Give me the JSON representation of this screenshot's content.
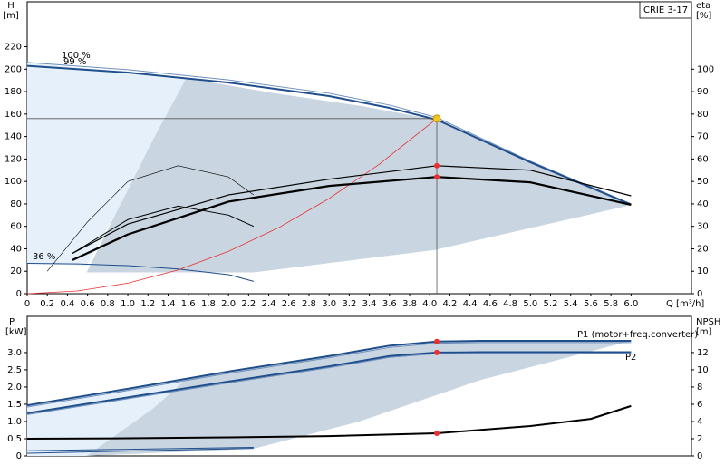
{
  "chart_data": [
    {
      "type": "line",
      "title": "CRIE 3-17",
      "xlabel": "Q [m³/h]",
      "ylabel": "H",
      "yunit": "[m]",
      "y2label": "eta",
      "y2unit": "[%]",
      "xlim": [
        0,
        6.6
      ],
      "ylim": [
        0,
        260
      ],
      "y2lim": [
        0,
        130
      ],
      "xticks": [
        0,
        0.2,
        0.4,
        0.6,
        0.8,
        {
          "value": 1,
          "label": "1.0"
        },
        1.2,
        1.4,
        1.6,
        1.8,
        {
          "value": 2,
          "label": "2.0"
        },
        2.2,
        2.4,
        2.6,
        2.8,
        {
          "value": 3,
          "label": "3.0"
        },
        3.2,
        3.4,
        3.6,
        3.8,
        {
          "value": 4,
          "label": "4.0"
        },
        4.2,
        4.4,
        4.6,
        4.8,
        {
          "value": 5,
          "label": "5.0"
        },
        5.2,
        5.4,
        5.6,
        5.8,
        {
          "value": 6,
          "label": "6.0"
        }
      ],
      "yticks": [
        0,
        20,
        40,
        60,
        80,
        100,
        120,
        140,
        160,
        180,
        200,
        220
      ],
      "y2ticks": [
        0,
        10,
        20,
        30,
        40,
        50,
        60,
        70,
        80,
        90,
        100
      ],
      "crosshair": true,
      "series": [
        {
          "x": [
            0.59,
            0.9,
            1.26,
            1.58,
            2.43,
            3.33,
            4.05,
            6.0,
            4.05,
            2.25
          ],
          "values": [
            19,
            75,
            139,
            192,
            179,
            167,
            155,
            79,
            39,
            19
          ],
          "fill": "#c9d5e1"
        },
        {
          "x": [
            0,
            1.58,
            1.26,
            0.9,
            0.59,
            0
          ],
          "values": [
            206,
            192,
            139,
            75,
            25,
            27
          ],
          "fill": "#e6f0fa"
        },
        {
          "name": "100 %",
          "x": [
            0,
            1,
            2,
            3,
            3.6,
            4.07,
            5,
            6
          ],
          "values": [
            206,
            199.5,
            190.5,
            178.5,
            168,
            157,
            118,
            80
          ],
          "color": "#6f8fba",
          "line_width": 1
        },
        {
          "name": "99 %",
          "x": [
            0,
            1,
            2,
            3,
            3.6,
            4.07,
            5,
            6
          ],
          "values": [
            203,
            197,
            188,
            176,
            165.5,
            155,
            117,
            79.5
          ],
          "color": "#1f4e8c",
          "line_width": 2
        },
        {
          "name": "36 %",
          "x": [
            0,
            0.5,
            1,
            1.5,
            2,
            2.25
          ],
          "values": [
            27,
            26.5,
            25,
            22,
            17,
            11
          ],
          "color": "#1f4e8c",
          "line_width": 1
        },
        {
          "x": [
            0,
            0.5,
            1,
            1.5,
            2,
            2.5,
            3,
            3.5,
            4.07
          ],
          "values": [
            0,
            2.4,
            9.4,
            21.2,
            37.7,
            58.9,
            84.8,
            115.4,
            156
          ],
          "color": "#e83030",
          "line_width": 0.8
        },
        {
          "axis": "y2",
          "x": [
            0.45,
            1,
            2,
            3,
            4.07,
            5,
            6
          ],
          "values": [
            18,
            31,
            44,
            51,
            57,
            55,
            43.6
          ],
          "color": "#000000",
          "line_width": 1.2
        },
        {
          "axis": "y2",
          "x": [
            0.45,
            1,
            2,
            3,
            4.07,
            5,
            6
          ],
          "values": [
            15,
            26.4,
            41,
            48,
            52,
            49.6,
            39.6
          ],
          "color": "#000000",
          "line_width": 2.2
        },
        {
          "axis": "y2",
          "x": [
            0.2,
            0.6,
            1,
            1.5,
            2,
            2.25
          ],
          "values": [
            10,
            32,
            50,
            57,
            52,
            44
          ],
          "color": "#000000",
          "line_width": 0.6
        },
        {
          "axis": "y2",
          "x": [
            0.45,
            1,
            1.5,
            2,
            2.25
          ],
          "values": [
            18,
            33,
            39,
            35,
            30
          ],
          "color": "#000000",
          "line_width": 1
        }
      ],
      "points": [
        {
          "x": 4.07,
          "y": 156,
          "color": "#f5c518"
        },
        {
          "x": 4.07,
          "y": 57,
          "axis": "y2",
          "color": "#e83030"
        },
        {
          "x": 4.07,
          "y": 52,
          "axis": "y2",
          "color": "#e83030"
        }
      ]
    },
    {
      "type": "line",
      "ylabel": "P",
      "yunit": "[kW]",
      "y2label": "NPSH",
      "y2unit": "[m]",
      "xlim": [
        0,
        6.6
      ],
      "ylim": [
        0,
        4.05
      ],
      "y2lim": [
        0,
        16.2
      ],
      "yticks": [
        0,
        0.5,
        {
          "value": 1,
          "label": "1.0"
        },
        1.5,
        {
          "value": 2,
          "label": "2.0"
        },
        2.5,
        {
          "value": 3,
          "label": "3.0"
        }
      ],
      "y2ticks": [
        0,
        2,
        4,
        6,
        8,
        10,
        12
      ],
      "series": [
        {
          "x": [
            0.59,
            1.26,
            1.58,
            3,
            4.07,
            6,
            4.5,
            3.3,
            2.25
          ],
          "values": [
            0,
            1.4,
            2.24,
            2.9,
            3.32,
            3.34,
            2.2,
            1.0,
            0.21
          ],
          "fill": "#c9d5e1"
        },
        {
          "x": [
            0,
            1.58,
            1.26,
            0.59,
            0
          ],
          "values": [
            1.47,
            2.24,
            1.4,
            0,
            0
          ],
          "fill": "#e6f0fa"
        },
        {
          "name": "P1 (motor+freq.converter)",
          "x": [
            0,
            1,
            2,
            3,
            3.6,
            4.07,
            4.5,
            6
          ],
          "values": [
            1.47,
            1.95,
            2.45,
            2.9,
            3.2,
            3.32,
            3.34,
            3.34
          ],
          "color": "#1f4e8c",
          "line_width": 2
        },
        {
          "x": [
            0,
            1,
            2,
            3,
            3.6,
            4.07,
            4.5,
            6
          ],
          "values": [
            1.42,
            1.9,
            2.4,
            2.85,
            3.15,
            3.27,
            3.29,
            3.29
          ],
          "color": "#6f8fba",
          "line_width": 1
        },
        {
          "name": "P2",
          "x": [
            0,
            1,
            2,
            3,
            3.6,
            4.07,
            4.5,
            6
          ],
          "values": [
            1.24,
            1.7,
            2.16,
            2.6,
            2.9,
            3.0,
            3.01,
            3.01
          ],
          "color": "#1f4e8c",
          "line_width": 2
        },
        {
          "x": [
            0,
            1,
            2,
            3,
            3.6,
            4.07,
            4.5,
            6
          ],
          "values": [
            1.2,
            1.66,
            2.12,
            2.56,
            2.86,
            2.97,
            2.98,
            2.98
          ],
          "color": "#6f8fba",
          "line_width": 1
        },
        {
          "x": [
            0,
            2.25
          ],
          "values": [
            0.15,
            0.25
          ],
          "color": "#1f4e8c",
          "line_width": 1
        },
        {
          "x": [
            0,
            2.25
          ],
          "values": [
            0.08,
            0.22
          ],
          "color": "#1f4e8c",
          "line_width": 1
        },
        {
          "axis": "y2",
          "x": [
            0,
            1,
            2,
            3,
            4.07,
            5,
            5.6,
            6
          ],
          "values": [
            2,
            2.05,
            2.15,
            2.3,
            2.63,
            3.47,
            4.3,
            5.8
          ],
          "color": "#000000",
          "line_width": 2
        }
      ],
      "points": [
        {
          "x": 4.07,
          "y": 3.32,
          "color": "#e83030"
        },
        {
          "x": 4.07,
          "y": 3.0,
          "color": "#e83030"
        },
        {
          "x": 4.07,
          "y": 2.63,
          "axis": "y2",
          "color": "#e83030"
        }
      ]
    }
  ]
}
